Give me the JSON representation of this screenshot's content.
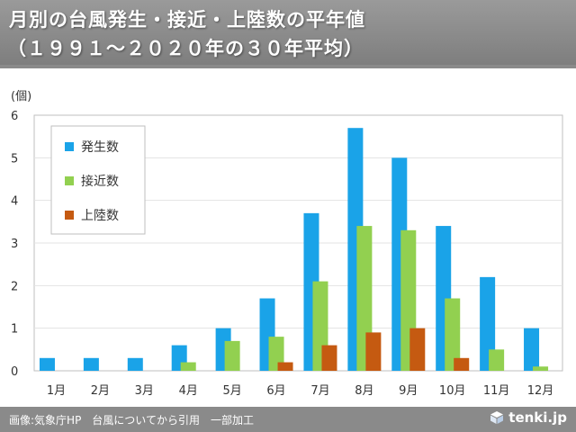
{
  "title": {
    "line1": "月別の台風発生・接近・上陸数の平年値",
    "line2": "（１９９１～２０２０年の３０年平均）"
  },
  "footer": {
    "credit": "画像:気象庁HP　台風についてから引用　一部加工",
    "brand": "tenki.jp"
  },
  "chart_data": {
    "type": "bar",
    "ylabel": "(個)",
    "ylim": [
      0,
      6
    ],
    "yticks": [
      0,
      1,
      2,
      3,
      4,
      5,
      6
    ],
    "categories": [
      "1月",
      "2月",
      "3月",
      "4月",
      "5月",
      "6月",
      "7月",
      "8月",
      "9月",
      "10月",
      "11月",
      "12月"
    ],
    "series": [
      {
        "name": "発生数",
        "color": "#1aa3e8",
        "values": [
          0.3,
          0.3,
          0.3,
          0.6,
          1.0,
          1.7,
          3.7,
          5.7,
          5.0,
          3.4,
          2.2,
          1.0
        ]
      },
      {
        "name": "接近数",
        "color": "#92d050",
        "values": [
          0,
          0,
          0,
          0.2,
          0.7,
          0.8,
          2.1,
          3.4,
          3.3,
          1.7,
          0.5,
          0.1
        ]
      },
      {
        "name": "上陸数",
        "color": "#c55a11",
        "values": [
          0,
          0,
          0,
          0,
          0.0,
          0.2,
          0.6,
          0.9,
          1.0,
          0.3,
          0,
          0
        ]
      }
    ],
    "grid": true,
    "legend": "top-left"
  }
}
